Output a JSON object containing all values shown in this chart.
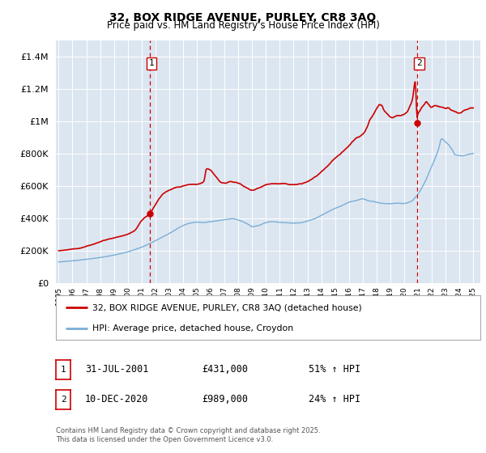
{
  "title1": "32, BOX RIDGE AVENUE, PURLEY, CR8 3AQ",
  "title2": "Price paid vs. HM Land Registry's House Price Index (HPI)",
  "legend1": "32, BOX RIDGE AVENUE, PURLEY, CR8 3AQ (detached house)",
  "legend2": "HPI: Average price, detached house, Croydon",
  "footnote": "Contains HM Land Registry data © Crown copyright and database right 2025.\nThis data is licensed under the Open Government Licence v3.0.",
  "sale1_label": "1",
  "sale1_date": "31-JUL-2001",
  "sale1_price": "£431,000",
  "sale1_hpi": "51% ↑ HPI",
  "sale2_label": "2",
  "sale2_date": "10-DEC-2020",
  "sale2_price": "£989,000",
  "sale2_hpi": "24% ↑ HPI",
  "line1_color": "#cc0000",
  "line2_color": "#7aaed6",
  "bg_color": "#dce6f1",
  "vline_color": "#cc0000",
  "marker1_x": 2001.577,
  "marker1_y": 431000,
  "marker2_x": 2020.94,
  "marker2_y": 989000,
  "ylim_max": 1500000,
  "xlim_min": 1994.8,
  "xlim_max": 2025.5,
  "sale1_x": 2001.577,
  "sale2_x": 2020.94,
  "yticks": [
    0,
    200000,
    400000,
    600000,
    800000,
    1000000,
    1200000,
    1400000
  ],
  "xtick_start": 1995,
  "xtick_end": 2025
}
